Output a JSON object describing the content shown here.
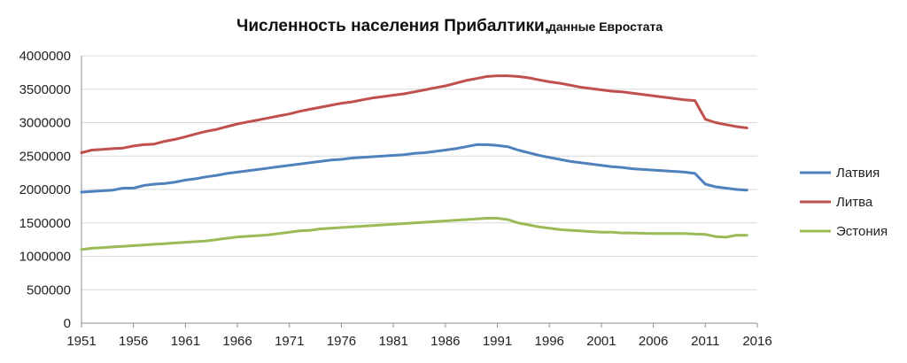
{
  "chart_data": {
    "type": "line",
    "title": "Численность населения Прибалтики,",
    "subtitle": "данные Евростата",
    "xlabel": "",
    "ylabel": "",
    "xlim": [
      1951,
      2016
    ],
    "ylim": [
      0,
      4000000
    ],
    "x_ticks": [
      "1951",
      "1956",
      "1961",
      "1966",
      "1971",
      "1976",
      "1981",
      "1986",
      "1991",
      "1996",
      "2001",
      "2006",
      "2011",
      "2016"
    ],
    "y_ticks": [
      "0",
      "500000",
      "1000000",
      "1500000",
      "2000000",
      "2500000",
      "3000000",
      "3500000",
      "4000000"
    ],
    "grid": true,
    "legend_position": "right",
    "x": [
      1951,
      1952,
      1953,
      1954,
      1955,
      1956,
      1957,
      1958,
      1959,
      1960,
      1961,
      1962,
      1963,
      1964,
      1965,
      1966,
      1967,
      1968,
      1969,
      1970,
      1971,
      1972,
      1973,
      1974,
      1975,
      1976,
      1977,
      1978,
      1979,
      1980,
      1981,
      1982,
      1983,
      1984,
      1985,
      1986,
      1987,
      1988,
      1989,
      1990,
      1991,
      1992,
      1993,
      1994,
      1995,
      1996,
      1997,
      1998,
      1999,
      2000,
      2001,
      2002,
      2003,
      2004,
      2005,
      2006,
      2007,
      2008,
      2009,
      2010,
      2011,
      2012,
      2013,
      2014,
      2015
    ],
    "series": [
      {
        "name": "Латвия",
        "color": "#4F81BD",
        "values": [
          1960000,
          1970000,
          1980000,
          1990000,
          2020000,
          2020000,
          2060000,
          2080000,
          2090000,
          2110000,
          2140000,
          2160000,
          2190000,
          2210000,
          2240000,
          2260000,
          2280000,
          2300000,
          2320000,
          2340000,
          2360000,
          2380000,
          2400000,
          2420000,
          2440000,
          2450000,
          2470000,
          2480000,
          2490000,
          2500000,
          2510000,
          2520000,
          2540000,
          2550000,
          2570000,
          2590000,
          2610000,
          2640000,
          2670000,
          2670000,
          2660000,
          2640000,
          2590000,
          2550000,
          2510000,
          2480000,
          2450000,
          2420000,
          2400000,
          2380000,
          2360000,
          2340000,
          2330000,
          2310000,
          2300000,
          2290000,
          2280000,
          2270000,
          2260000,
          2240000,
          2080000,
          2040000,
          2020000,
          2000000,
          1990000
        ]
      },
      {
        "name": "Литва",
        "color": "#C0504D",
        "values": [
          2550000,
          2590000,
          2600000,
          2610000,
          2620000,
          2650000,
          2670000,
          2680000,
          2720000,
          2750000,
          2790000,
          2830000,
          2870000,
          2900000,
          2940000,
          2980000,
          3010000,
          3040000,
          3070000,
          3100000,
          3130000,
          3170000,
          3200000,
          3230000,
          3260000,
          3290000,
          3310000,
          3340000,
          3370000,
          3390000,
          3410000,
          3430000,
          3460000,
          3490000,
          3520000,
          3550000,
          3590000,
          3630000,
          3660000,
          3690000,
          3700000,
          3700000,
          3690000,
          3670000,
          3640000,
          3610000,
          3590000,
          3560000,
          3530000,
          3510000,
          3490000,
          3470000,
          3460000,
          3440000,
          3420000,
          3400000,
          3380000,
          3360000,
          3340000,
          3330000,
          3050000,
          3000000,
          2970000,
          2940000,
          2920000
        ]
      },
      {
        "name": "Эстония",
        "color": "#9BBB59",
        "values": [
          1100000,
          1120000,
          1130000,
          1140000,
          1150000,
          1160000,
          1170000,
          1180000,
          1190000,
          1200000,
          1210000,
          1220000,
          1230000,
          1250000,
          1270000,
          1290000,
          1300000,
          1310000,
          1320000,
          1340000,
          1360000,
          1380000,
          1390000,
          1410000,
          1420000,
          1430000,
          1440000,
          1450000,
          1460000,
          1470000,
          1480000,
          1490000,
          1500000,
          1510000,
          1520000,
          1530000,
          1540000,
          1550000,
          1560000,
          1570000,
          1570000,
          1550000,
          1500000,
          1470000,
          1440000,
          1420000,
          1400000,
          1390000,
          1380000,
          1370000,
          1360000,
          1360000,
          1350000,
          1350000,
          1345000,
          1340000,
          1340000,
          1340000,
          1340000,
          1333000,
          1329000,
          1294000,
          1286000,
          1316000,
          1315000
        ]
      }
    ]
  }
}
